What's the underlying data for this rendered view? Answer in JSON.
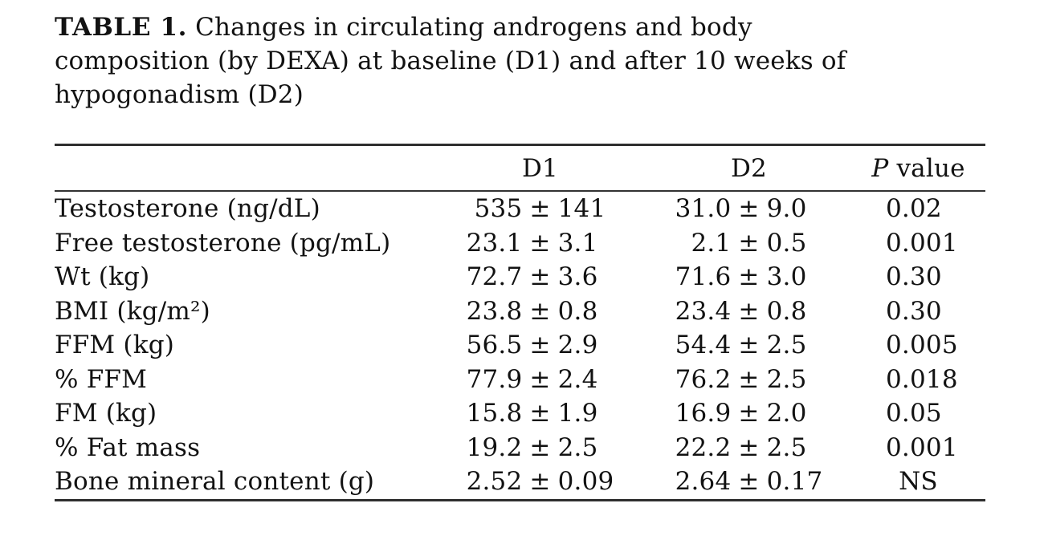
{
  "title": {
    "label": "TABLE 1.",
    "line1_rest": "Changes in circulating androgens and body",
    "line2": "composition (by DEXA) at baseline (D1) and after 10 weeks of",
    "line3": "hypogonadism (D2)"
  },
  "table": {
    "pm_sign": "±",
    "header": {
      "col_d1": "D1",
      "col_d2": "D2",
      "p_italic": "P",
      "p_rest": " value"
    },
    "rows": [
      {
        "label": "Testosterone (ng/dL)",
        "d1": "535",
        "d1_sd": "141",
        "d2": "31.0",
        "d2_sd": "9.0",
        "p": "0.02"
      },
      {
        "label": "Free testosterone (pg/mL)",
        "d1": "23.1",
        "d1_sd": "3.1",
        "d2": "2.1",
        "d2_sd": "0.5",
        "p": "0.001"
      },
      {
        "label": "Wt (kg)",
        "d1": "72.7",
        "d1_sd": "3.6",
        "d2": "71.6",
        "d2_sd": "3.0",
        "p": "0.30"
      },
      {
        "label": "BMI (kg/m²)",
        "d1": "23.8",
        "d1_sd": "0.8",
        "d2": "23.4",
        "d2_sd": "0.8",
        "p": "0.30"
      },
      {
        "label": "FFM (kg)",
        "d1": "56.5",
        "d1_sd": "2.9",
        "d2": "54.4",
        "d2_sd": "2.5",
        "p": "0.005"
      },
      {
        "label": "% FFM",
        "d1": "77.9",
        "d1_sd": "2.4",
        "d2": "76.2",
        "d2_sd": "2.5",
        "p": "0.018"
      },
      {
        "label": "FM (kg)",
        "d1": "15.8",
        "d1_sd": "1.9",
        "d2": "16.9",
        "d2_sd": "2.0",
        "p": "0.05"
      },
      {
        "label": "% Fat mass",
        "d1": "19.2",
        "d1_sd": "2.5",
        "d2": "22.2",
        "d2_sd": "2.5",
        "p": "0.001"
      },
      {
        "label": "Bone mineral content (g)",
        "d1": "2.52",
        "d1_sd": "0.09",
        "d2": "2.64",
        "d2_sd": "0.17",
        "p": "NS"
      }
    ]
  }
}
